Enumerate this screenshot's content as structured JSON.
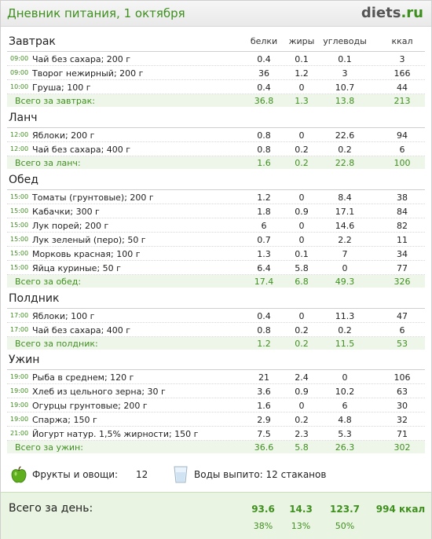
{
  "header": {
    "title": "Дневник питания, 1 октября",
    "logo_main": "diets",
    "logo_tld": ".ru"
  },
  "columns": {
    "protein": "белки",
    "fat": "жиры",
    "carbs": "углеводы",
    "kcal": "ккал"
  },
  "meals": [
    {
      "title": "Завтрак",
      "items": [
        {
          "time": "09:00",
          "name": "Чай без сахара; 200 г",
          "p": "0.4",
          "f": "0.1",
          "c": "0.1",
          "k": "3"
        },
        {
          "time": "09:00",
          "name": "Творог нежирный; 200 г",
          "p": "36",
          "f": "1.2",
          "c": "3",
          "k": "166"
        },
        {
          "time": "10:00",
          "name": "Груша; 100 г",
          "p": "0.4",
          "f": "0",
          "c": "10.7",
          "k": "44"
        }
      ],
      "total": {
        "label": "Всего за завтрак:",
        "p": "36.8",
        "f": "1.3",
        "c": "13.8",
        "k": "213"
      }
    },
    {
      "title": "Ланч",
      "items": [
        {
          "time": "12:00",
          "name": "Яблоки; 200 г",
          "p": "0.8",
          "f": "0",
          "c": "22.6",
          "k": "94"
        },
        {
          "time": "12:00",
          "name": "Чай без сахара; 400 г",
          "p": "0.8",
          "f": "0.2",
          "c": "0.2",
          "k": "6"
        }
      ],
      "total": {
        "label": "Всего за ланч:",
        "p": "1.6",
        "f": "0.2",
        "c": "22.8",
        "k": "100"
      }
    },
    {
      "title": "Обед",
      "items": [
        {
          "time": "15:00",
          "name": "Томаты (грунтовые); 200 г",
          "p": "1.2",
          "f": "0",
          "c": "8.4",
          "k": "38"
        },
        {
          "time": "15:00",
          "name": "Кабачки; 300 г",
          "p": "1.8",
          "f": "0.9",
          "c": "17.1",
          "k": "84"
        },
        {
          "time": "15:00",
          "name": "Лук порей; 200 г",
          "p": "6",
          "f": "0",
          "c": "14.6",
          "k": "82"
        },
        {
          "time": "15:00",
          "name": "Лук зеленый (перо); 50 г",
          "p": "0.7",
          "f": "0",
          "c": "2.2",
          "k": "11"
        },
        {
          "time": "15:00",
          "name": "Морковь красная; 100 г",
          "p": "1.3",
          "f": "0.1",
          "c": "7",
          "k": "34"
        },
        {
          "time": "15:00",
          "name": "Яйца куриные; 50 г",
          "p": "6.4",
          "f": "5.8",
          "c": "0",
          "k": "77"
        }
      ],
      "total": {
        "label": "Всего за обед:",
        "p": "17.4",
        "f": "6.8",
        "c": "49.3",
        "k": "326"
      }
    },
    {
      "title": "Полдник",
      "items": [
        {
          "time": "17:00",
          "name": "Яблоки; 100 г",
          "p": "0.4",
          "f": "0",
          "c": "11.3",
          "k": "47"
        },
        {
          "time": "17:00",
          "name": "Чай без сахара; 400 г",
          "p": "0.8",
          "f": "0.2",
          "c": "0.2",
          "k": "6"
        }
      ],
      "total": {
        "label": "Всего за полдник:",
        "p": "1.2",
        "f": "0.2",
        "c": "11.5",
        "k": "53"
      }
    },
    {
      "title": "Ужин",
      "items": [
        {
          "time": "19:00",
          "name": "Рыба в среднем; 120 г",
          "p": "21",
          "f": "2.4",
          "c": "0",
          "k": "106"
        },
        {
          "time": "19:00",
          "name": "Хлеб из цельного зерна; 30 г",
          "p": "3.6",
          "f": "0.9",
          "c": "10.2",
          "k": "63"
        },
        {
          "time": "19:00",
          "name": "Огурцы грунтовые; 200 г",
          "p": "1.6",
          "f": "0",
          "c": "6",
          "k": "30"
        },
        {
          "time": "19:00",
          "name": "Спаржа; 150 г",
          "p": "2.9",
          "f": "0.2",
          "c": "4.8",
          "k": "32"
        },
        {
          "time": "21:00",
          "name": "Йогурт натур. 1,5% жирности; 150 г",
          "p": "7.5",
          "f": "2.3",
          "c": "5.3",
          "k": "71"
        }
      ],
      "total": {
        "label": "Всего за ужин:",
        "p": "36.6",
        "f": "5.8",
        "c": "26.3",
        "k": "302"
      }
    }
  ],
  "extras": {
    "fruits_label": "Фрукты и овощи:",
    "fruits_value": "12",
    "water_text": "Воды выпито: 12 стаканов",
    "apple_icon": "apple-icon",
    "glass_icon": "glass-icon"
  },
  "day_total": {
    "label": "Всего за день:",
    "p": "93.6",
    "f": "14.3",
    "c": "123.7",
    "k": "994 ккал",
    "p_pct": "38%",
    "f_pct": "13%",
    "c_pct": "50%"
  },
  "colors": {
    "accent": "#3f8f1f",
    "total_bg": "#eef6e9"
  }
}
